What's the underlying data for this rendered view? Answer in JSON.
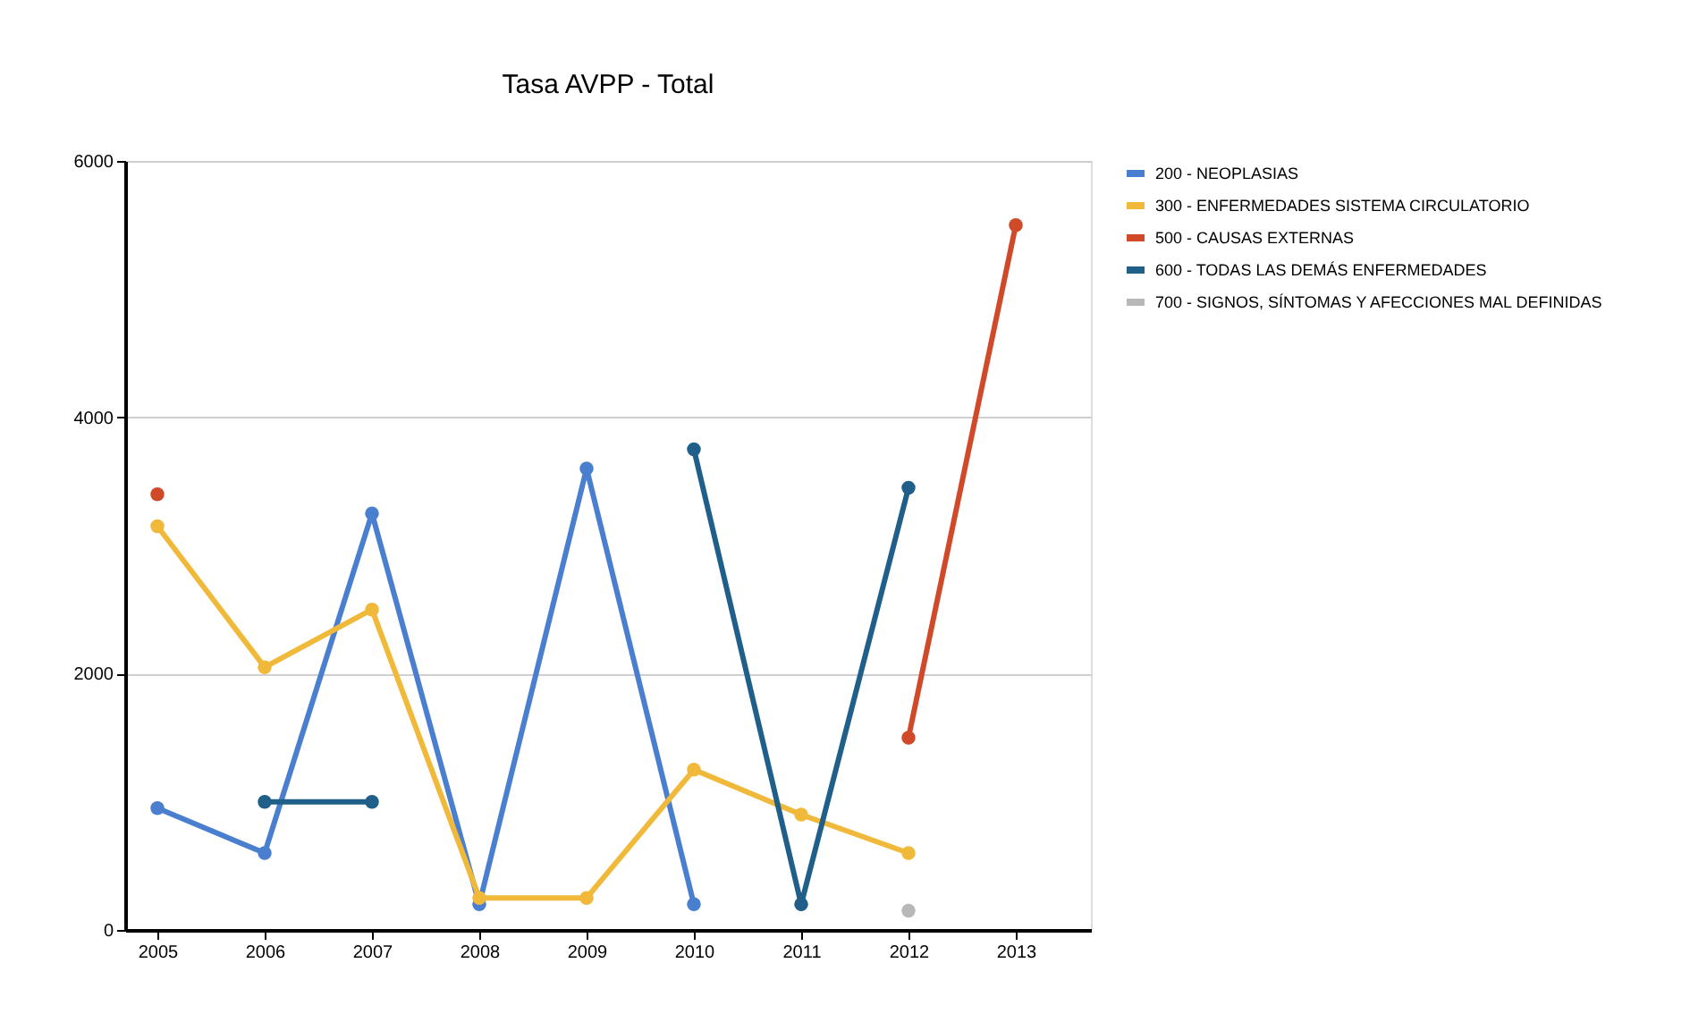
{
  "chart_data": {
    "type": "line",
    "title": "Tasa AVPP - Total",
    "categories": [
      "2005",
      "2006",
      "2007",
      "2008",
      "2009",
      "2010",
      "2011",
      "2012",
      "2013"
    ],
    "series": [
      {
        "name": "200 - NEOPLASIAS",
        "color": "#4a7fd0",
        "values": [
          950,
          600,
          3250,
          200,
          3600,
          200,
          null,
          null,
          null
        ]
      },
      {
        "name": "300 - ENFERMEDADES SISTEMA CIRCULATORIO",
        "color": "#f0b93a",
        "values": [
          3150,
          2050,
          2500,
          250,
          250,
          1250,
          900,
          600,
          null
        ]
      },
      {
        "name": "500 - CAUSAS EXTERNAS",
        "color": "#d04a2a",
        "values": [
          3400,
          null,
          null,
          null,
          null,
          null,
          null,
          1500,
          5500
        ]
      },
      {
        "name": "600 - TODAS LAS DEMÁS ENFERMEDADES",
        "color": "#1f5f8a",
        "values": [
          null,
          1000,
          1000,
          null,
          null,
          3750,
          200,
          3450,
          null
        ]
      },
      {
        "name": "700 - SIGNOS, SÍNTOMAS Y AFECCIONES MAL DEFINIDAS",
        "color": "#b8b8b8",
        "values": [
          null,
          null,
          null,
          null,
          null,
          null,
          null,
          150,
          null
        ]
      }
    ],
    "ylim": [
      0,
      6000
    ],
    "yticks": [
      0,
      2000,
      4000,
      6000
    ],
    "grid": "y",
    "legend": "top right",
    "marker": "circle",
    "line_style": "solid"
  }
}
